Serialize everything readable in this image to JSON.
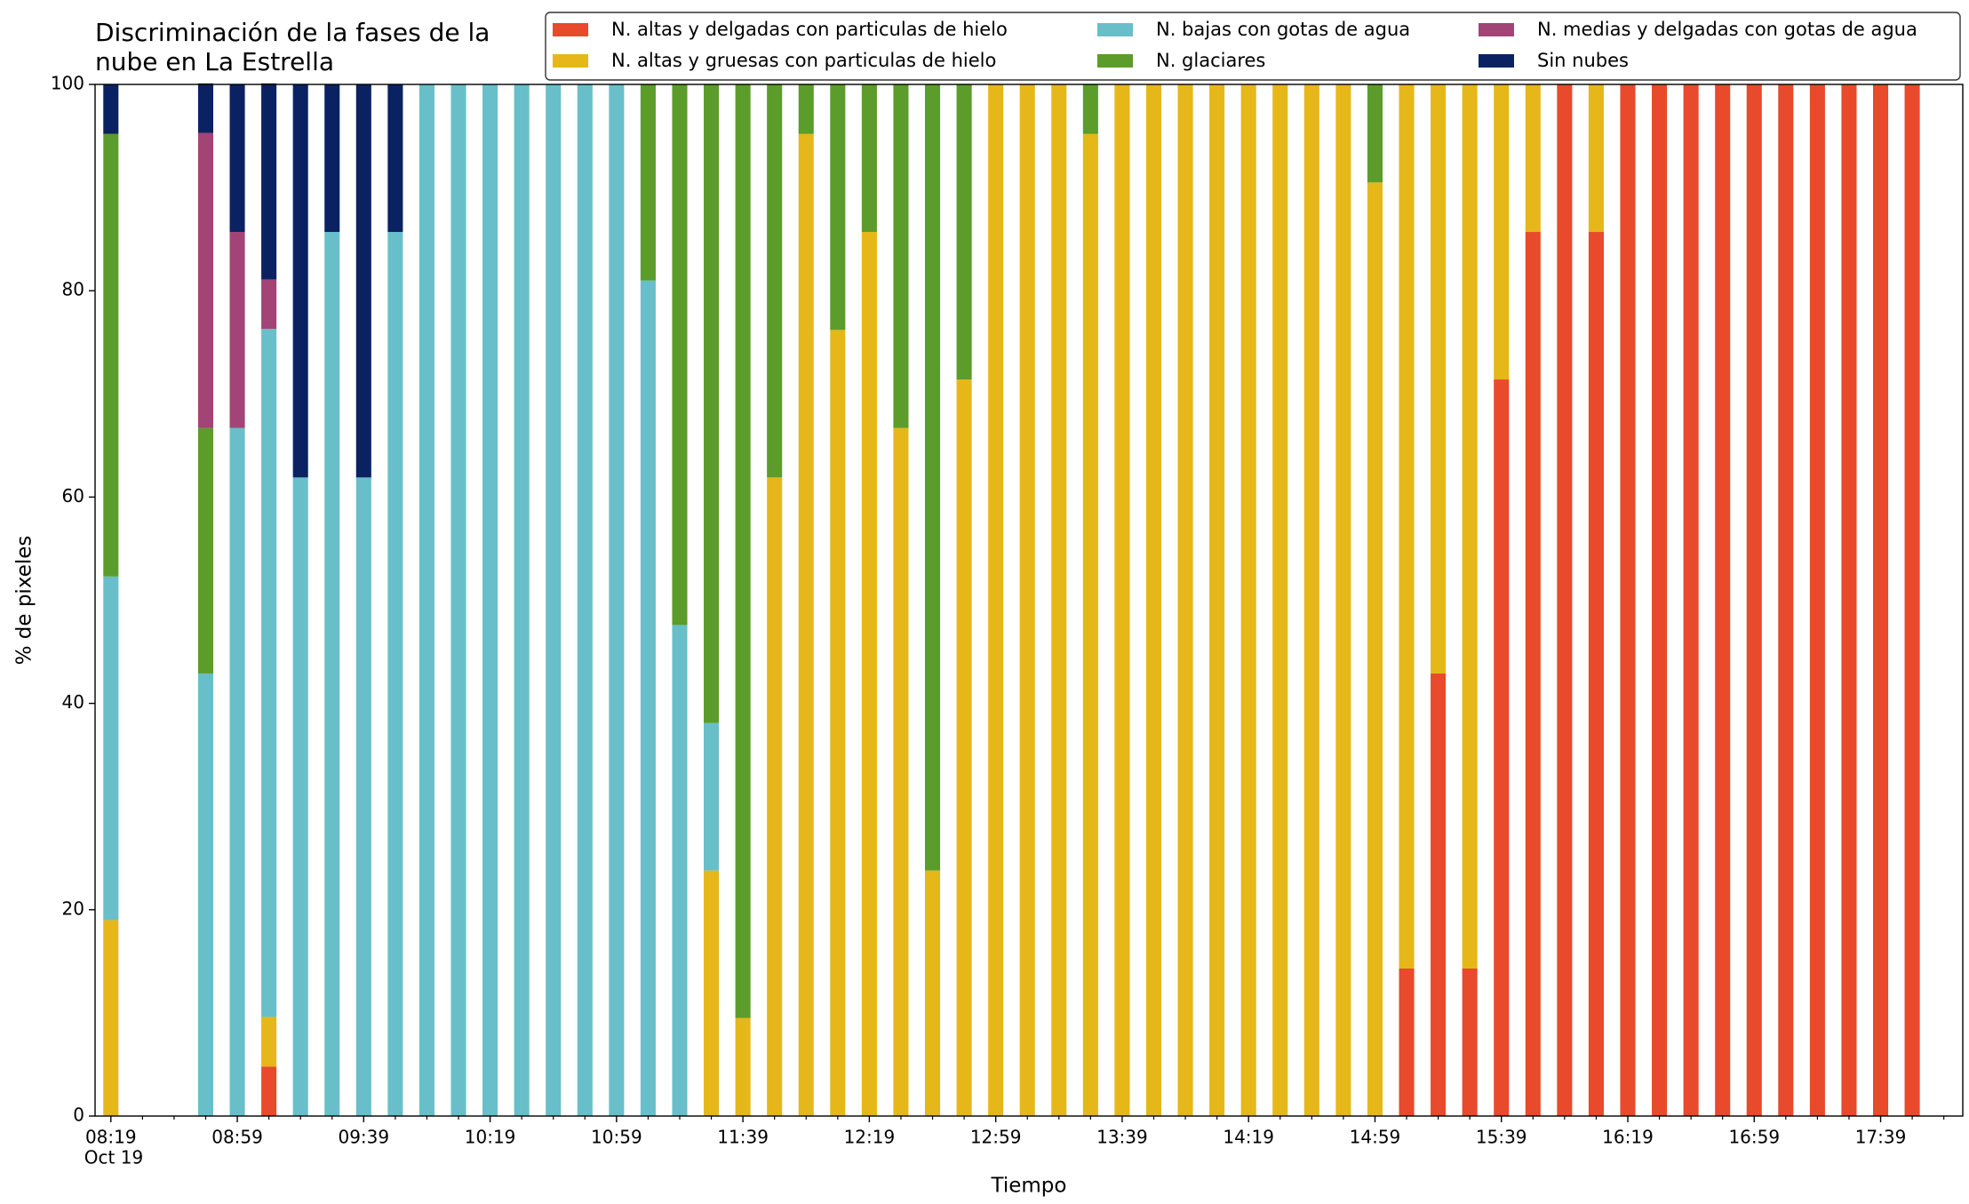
{
  "chart_data": {
    "type": "stacked_bar",
    "title": "Discriminación de la fases de la\nnube en La Estrella",
    "xlabel": "Tiempo",
    "ylabel": "% de pixeles",
    "x_date_label": "Oct 19",
    "x": [
      "08:19",
      "08:49",
      "08:59",
      "09:09",
      "09:19",
      "09:29",
      "09:39",
      "09:49",
      "09:59",
      "10:09",
      "10:19",
      "10:29",
      "10:39",
      "10:49",
      "10:59",
      "11:09",
      "11:19",
      "11:29",
      "11:39",
      "11:49",
      "11:59",
      "12:09",
      "12:19",
      "12:29",
      "12:39",
      "12:49",
      "12:59",
      "13:09",
      "13:19",
      "13:29",
      "13:39",
      "13:49",
      "13:59",
      "14:09",
      "14:19",
      "14:29",
      "14:39",
      "14:49",
      "14:59",
      "15:09",
      "15:19",
      "15:29",
      "15:39",
      "15:49",
      "15:59",
      "16:09",
      "16:19",
      "16:29",
      "16:39",
      "16:49",
      "16:59",
      "17:09",
      "17:19",
      "17:29",
      "17:39",
      "17:49"
    ],
    "series": [
      {
        "name": "N. altas y delgadas con particulas de hielo",
        "color": "#e84a2b",
        "values": [
          0,
          0,
          0,
          4.8,
          0,
          0,
          0,
          0,
          0,
          0,
          0,
          0,
          0,
          0,
          0,
          0,
          0,
          0,
          0,
          0,
          0,
          0,
          0,
          0,
          0,
          0,
          0,
          0,
          0,
          0,
          0,
          0,
          0,
          0,
          0,
          0,
          0,
          0,
          0,
          14.3,
          42.9,
          14.3,
          71.4,
          85.7,
          100,
          85.7,
          100,
          100,
          100,
          100,
          100,
          100,
          100,
          100,
          100,
          100
        ]
      },
      {
        "name": "N. altas y gruesas con particulas de hielo",
        "color": "#e5b719",
        "values": [
          19.0,
          0,
          0,
          4.8,
          0,
          0,
          0,
          0,
          0,
          0,
          0,
          0,
          0,
          0,
          0,
          0,
          0,
          23.8,
          9.5,
          61.9,
          95.2,
          76.2,
          85.7,
          66.7,
          23.8,
          71.4,
          100,
          100,
          100,
          95.2,
          100,
          100,
          100,
          100,
          100,
          100,
          100,
          100,
          90.5,
          85.7,
          57.1,
          85.7,
          28.6,
          14.3,
          0,
          14.3,
          0,
          0,
          0,
          0,
          0,
          0,
          0,
          0,
          0,
          0
        ]
      },
      {
        "name": "N. bajas con gotas de agua",
        "color": "#68bfc9",
        "values": [
          33.3,
          42.9,
          66.7,
          66.7,
          61.9,
          85.7,
          61.9,
          85.7,
          100,
          100,
          100,
          100,
          100,
          100,
          100,
          81.0,
          47.6,
          14.3,
          0,
          0,
          0,
          0,
          0,
          0,
          0,
          0,
          0,
          0,
          0,
          0,
          0,
          0,
          0,
          0,
          0,
          0,
          0,
          0,
          0,
          0,
          0,
          0,
          0,
          0,
          0,
          0,
          0,
          0,
          0,
          0,
          0,
          0,
          0,
          0,
          0,
          0
        ]
      },
      {
        "name": "N. glaciares",
        "color": "#5b9c2b",
        "values": [
          42.9,
          23.8,
          0,
          0,
          0,
          0,
          0,
          0,
          0,
          0,
          0,
          0,
          0,
          0,
          0,
          19.0,
          52.4,
          61.9,
          90.5,
          38.1,
          4.8,
          23.8,
          14.3,
          33.3,
          76.2,
          28.6,
          0,
          0,
          0,
          4.8,
          0,
          0,
          0,
          0,
          0,
          0,
          0,
          0,
          9.5,
          0,
          0,
          0,
          0,
          0,
          0,
          0,
          0,
          0,
          0,
          0,
          0,
          0,
          0,
          0,
          0,
          0
        ]
      },
      {
        "name": "N. medias y delgadas con gotas de agua",
        "color": "#a24476",
        "values": [
          0,
          28.6,
          19.0,
          4.8,
          0,
          0,
          0,
          0,
          0,
          0,
          0,
          0,
          0,
          0,
          0,
          0,
          0,
          0,
          0,
          0,
          0,
          0,
          0,
          0,
          0,
          0,
          0,
          0,
          0,
          0,
          0,
          0,
          0,
          0,
          0,
          0,
          0,
          0,
          0,
          0,
          0,
          0,
          0,
          0,
          0,
          0,
          0,
          0,
          0,
          0,
          0,
          0,
          0,
          0,
          0,
          0
        ]
      },
      {
        "name": "Sin nubes",
        "color": "#0b2262",
        "values": [
          4.8,
          4.8,
          14.3,
          19.0,
          38.1,
          14.3,
          38.1,
          14.3,
          0,
          0,
          0,
          0,
          0,
          0,
          0,
          0,
          0,
          0,
          0,
          0,
          0,
          0,
          0,
          0,
          0,
          0,
          0,
          0,
          0,
          0,
          0,
          0,
          0,
          0,
          0,
          0,
          0,
          0,
          0,
          0,
          0,
          0,
          0,
          0,
          0,
          0,
          0,
          0,
          0,
          0,
          0,
          0,
          0,
          0,
          0,
          0
        ]
      }
    ],
    "xlim": [
      "08:14",
      "18:05"
    ],
    "xticks": [
      "08:19",
      "08:59",
      "09:39",
      "10:19",
      "10:59",
      "11:39",
      "12:19",
      "12:59",
      "13:39",
      "14:19",
      "14:59",
      "15:39",
      "16:19",
      "16:59",
      "17:39"
    ],
    "xminorticks": [
      "08:29",
      "08:39",
      "08:49",
      "09:09",
      "09:19",
      "09:29",
      "09:49",
      "09:59",
      "10:09",
      "10:29",
      "10:39",
      "10:49",
      "11:09",
      "11:19",
      "11:29",
      "11:49",
      "11:59",
      "12:09",
      "12:29",
      "12:39",
      "12:49",
      "13:09",
      "13:19",
      "13:29",
      "13:49",
      "13:59",
      "14:09",
      "14:29",
      "14:39",
      "14:49",
      "15:09",
      "15:19",
      "15:29",
      "15:49",
      "15:59",
      "16:09",
      "16:29",
      "16:39",
      "16:49",
      "17:09",
      "17:19",
      "17:29",
      "17:49",
      "17:59"
    ],
    "ylim": [
      0,
      100
    ],
    "yticks": [
      0,
      20,
      40,
      60,
      80,
      100
    ],
    "grid": false,
    "legend": "upper right"
  }
}
